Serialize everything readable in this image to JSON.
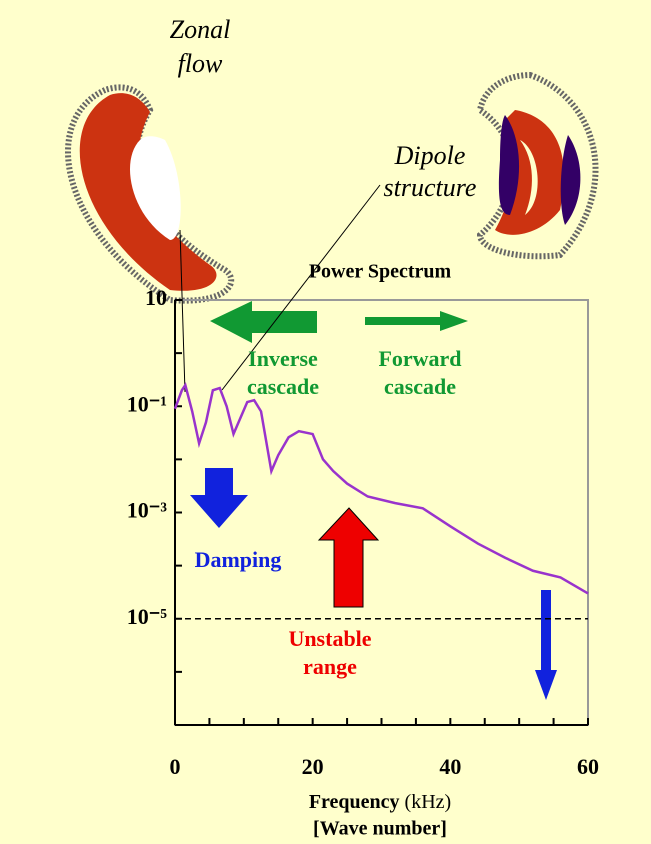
{
  "chart_data": {
    "type": "line",
    "title": "Power Spectrum",
    "xlabel": "Frequency",
    "xunit": "(kHz)",
    "xlabel2": "[Wave number]",
    "x": [
      0,
      1,
      1.5,
      2.5,
      3.5,
      4.5,
      5.5,
      6.5,
      7.5,
      8.5,
      9.5,
      10.5,
      11.5,
      12.5,
      14,
      15,
      16.5,
      18,
      20,
      21.5,
      23,
      25,
      28,
      32,
      36,
      40,
      44,
      48,
      52,
      56,
      60
    ],
    "series": [
      {
        "name": "Power spectrum",
        "color": "#9933cc",
        "values": [
          0.09,
          0.2,
          0.25,
          0.08,
          0.02,
          0.05,
          0.2,
          0.22,
          0.1,
          0.03,
          0.06,
          0.12,
          0.13,
          0.08,
          0.006,
          0.012,
          0.026,
          0.034,
          0.03,
          0.01,
          0.006,
          0.0035,
          0.002,
          0.0015,
          0.0012,
          0.00055,
          0.00026,
          0.00014,
          8e-05,
          6e-05,
          3e-05
        ]
      }
    ],
    "xlim": [
      0,
      60
    ],
    "xticks": [
      0,
      20,
      40,
      60
    ],
    "minor_xticks": [
      5,
      10,
      15,
      25,
      30,
      35,
      45,
      50,
      55
    ],
    "ylim": [
      1e-07,
      10
    ],
    "log_y": true,
    "yticks": [
      10,
      {
        "value": 0.1,
        "label": "10⁻¹"
      },
      {
        "value": 0.001,
        "label": "10⁻³"
      },
      {
        "value": 1e-05,
        "label": "10⁻⁵"
      }
    ],
    "minor_yticks": [
      1,
      0.01,
      0.0001,
      1e-06
    ],
    "reference_line": 1e-05,
    "annotations": [
      {
        "lines": [
          "Zonal",
          "flow"
        ]
      },
      {
        "lines": [
          "Dipole",
          "structure"
        ]
      },
      {
        "lines": [
          "Inverse",
          "cascade"
        ]
      },
      {
        "lines": [
          "Forward",
          "cascade"
        ]
      },
      {
        "lines": [
          "Damping"
        ]
      },
      {
        "lines": [
          "Unstable",
          "range"
        ]
      }
    ]
  }
}
